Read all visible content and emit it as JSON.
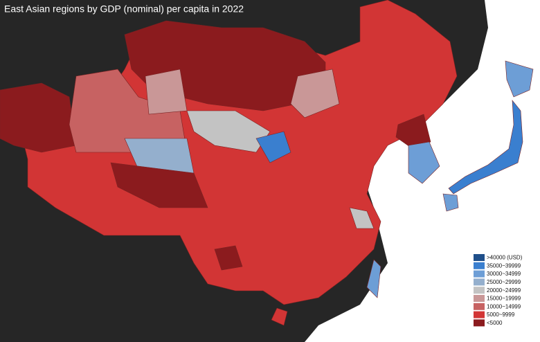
{
  "title": "East Asian regions by GDP (nominal) per capita in 2022",
  "legend": {
    "items": [
      {
        "label": ">40000 (USD)",
        "color": "#1f4f8a"
      },
      {
        "label": "35000~39999",
        "color": "#3a7fcf"
      },
      {
        "label": "30000~34999",
        "color": "#6d9ed6"
      },
      {
        "label": "25000~29999",
        "color": "#94afcd"
      },
      {
        "label": "20000~24999",
        "color": "#c3c3c3"
      },
      {
        "label": "15000~19999",
        "color": "#c99797"
      },
      {
        "label": "10000~14999",
        "color": "#c76262"
      },
      {
        "label": "5000~9999",
        "color": "#d23535"
      },
      {
        "label": "<5000",
        "color": "#8b1b1e"
      }
    ]
  }
}
